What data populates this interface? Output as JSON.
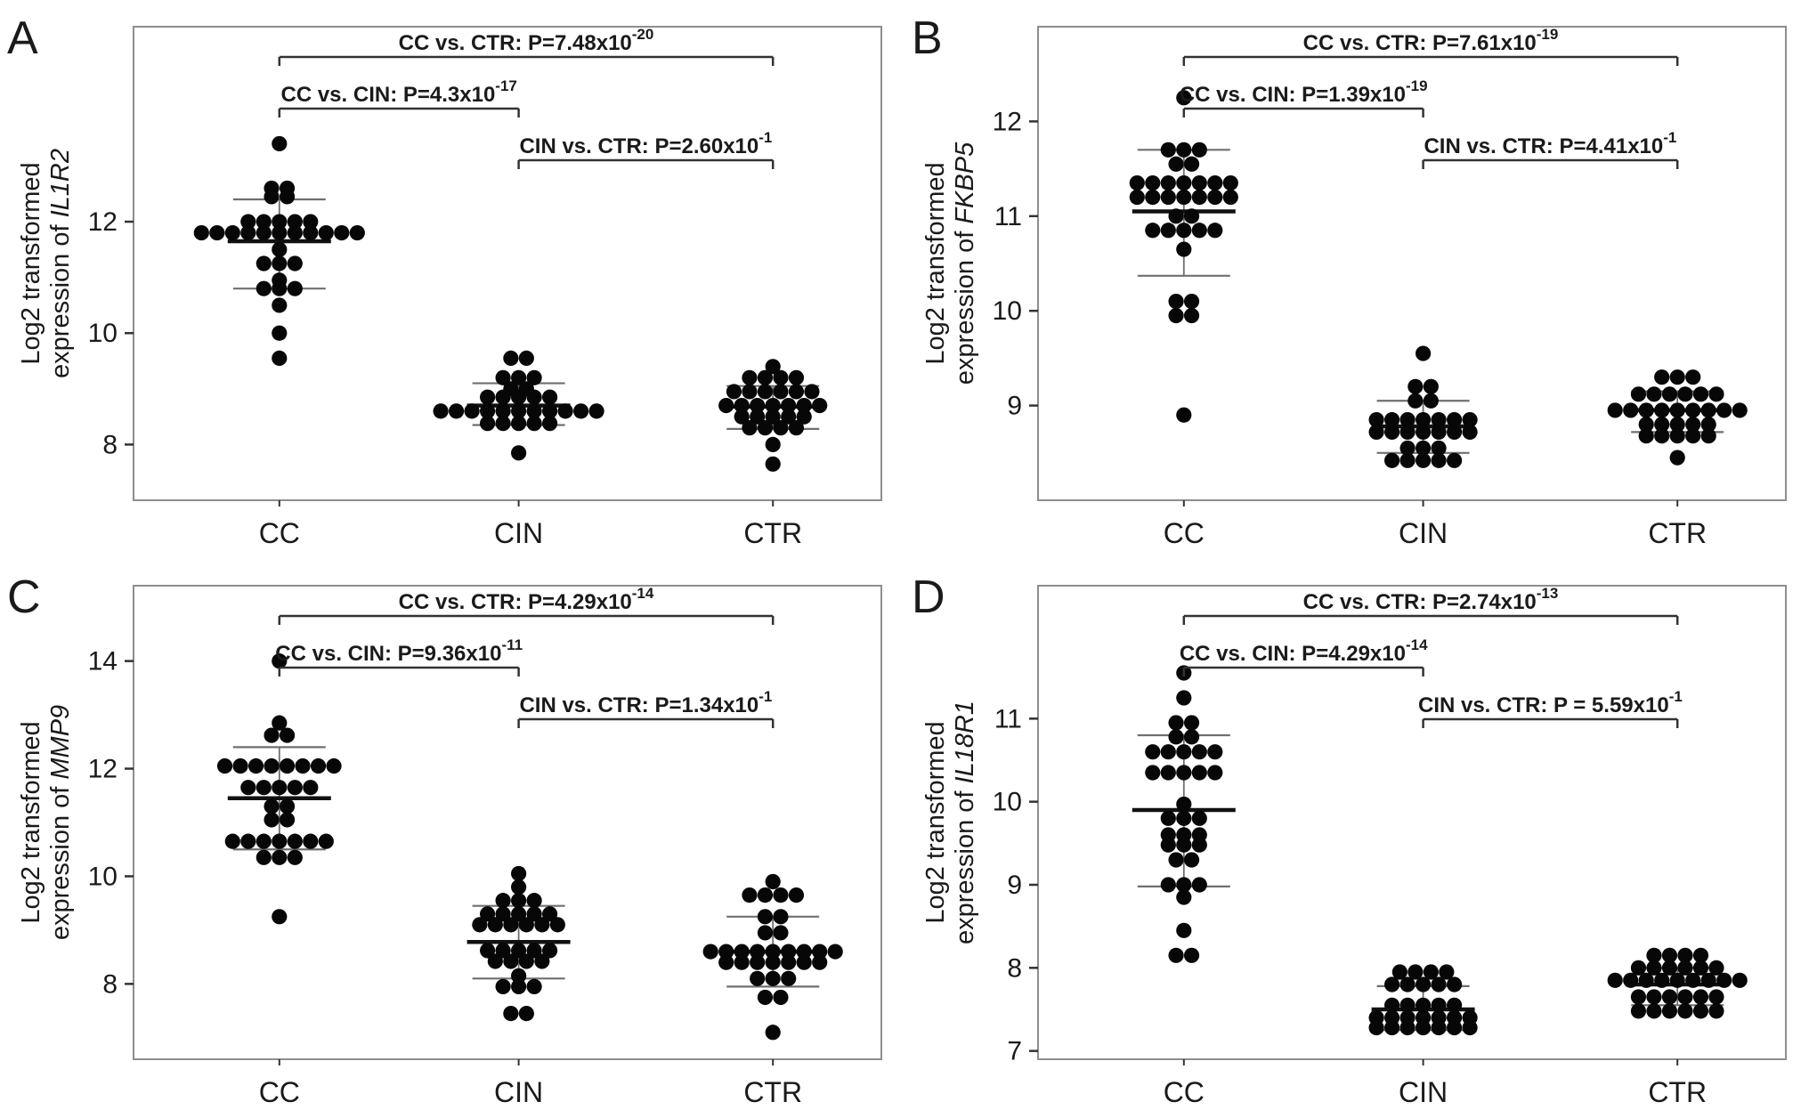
{
  "figure": {
    "background": "#ffffff",
    "dot_color": "#070707",
    "mean_line_color": "#111111",
    "whisker_color": "#6f6f6f",
    "box_border_color": "#8e8e8e",
    "axis_text_color": "#1a1a1a",
    "bracket_color": "#333333"
  },
  "chart_data": [
    {
      "type": "scatter",
      "panel": "A",
      "ylabel_line1": "Log2 transformed",
      "ylabel_line2": "expression of",
      "gene": "IL1R2",
      "yticks": [
        8,
        10,
        12
      ],
      "ylim": [
        7.0,
        15.5
      ],
      "categories": [
        "CC",
        "CIN",
        "CTR"
      ],
      "groups": [
        {
          "label": "CC",
          "mean": 11.65,
          "sd_upper": 12.4,
          "sd_lower": 10.8,
          "rows": [
            [
              13.4,
              1
            ],
            [
              12.6,
              2
            ],
            [
              12.45,
              2
            ],
            [
              12.0,
              5
            ],
            [
              11.8,
              11
            ],
            [
              11.5,
              1
            ],
            [
              11.25,
              3
            ],
            [
              10.95,
              1
            ],
            [
              10.8,
              3
            ],
            [
              10.5,
              1
            ],
            [
              10.0,
              1
            ],
            [
              9.55,
              1
            ]
          ]
        },
        {
          "label": "CIN",
          "mean": 8.7,
          "sd_upper": 9.1,
          "sd_lower": 8.35,
          "rows": [
            [
              9.55,
              2
            ],
            [
              9.2,
              3
            ],
            [
              9.0,
              2
            ],
            [
              8.85,
              5
            ],
            [
              8.6,
              11
            ],
            [
              8.38,
              5
            ],
            [
              7.85,
              1
            ]
          ]
        },
        {
          "label": "CTR",
          "mean": 8.68,
          "sd_upper": 9.05,
          "sd_lower": 8.28,
          "rows": [
            [
              9.4,
              1
            ],
            [
              9.2,
              4
            ],
            [
              8.95,
              6
            ],
            [
              8.7,
              7
            ],
            [
              8.5,
              5
            ],
            [
              8.3,
              4
            ],
            [
              8.0,
              1
            ],
            [
              7.65,
              1
            ]
          ]
        }
      ],
      "annotations": [
        {
          "text": "CC vs. CTR: P=7.48x10",
          "exponent": "-20",
          "from": "CC",
          "to": "CTR",
          "level": 0
        },
        {
          "text": "CC vs. CIN: P=4.3x10",
          "exponent": "-17",
          "from": "CC",
          "to": "CIN",
          "level": 1
        },
        {
          "text": "CIN vs. CTR: P=2.60x10",
          "exponent": "-1",
          "from": "CIN",
          "to": "CTR",
          "level": 2
        }
      ]
    },
    {
      "type": "scatter",
      "panel": "B",
      "ylabel_line1": "Log2 transformed",
      "ylabel_line2": "expression of",
      "gene": "FKBP5",
      "yticks": [
        9,
        10,
        11,
        12
      ],
      "ylim": [
        8.0,
        13.0
      ],
      "categories": [
        "CC",
        "CIN",
        "CTR"
      ],
      "groups": [
        {
          "label": "CC",
          "mean": 11.05,
          "sd_upper": 11.7,
          "sd_lower": 10.37,
          "rows": [
            [
              12.25,
              1
            ],
            [
              11.7,
              3
            ],
            [
              11.55,
              2
            ],
            [
              11.35,
              7
            ],
            [
              11.2,
              7
            ],
            [
              11.0,
              2
            ],
            [
              10.85,
              5
            ],
            [
              10.65,
              1
            ],
            [
              10.1,
              2
            ],
            [
              9.95,
              2
            ],
            [
              8.9,
              1
            ]
          ]
        },
        {
          "label": "CIN",
          "mean": 8.78,
          "sd_upper": 9.05,
          "sd_lower": 8.5,
          "rows": [
            [
              9.55,
              1
            ],
            [
              9.2,
              2
            ],
            [
              9.05,
              2
            ],
            [
              8.85,
              7
            ],
            [
              8.72,
              7
            ],
            [
              8.55,
              3
            ],
            [
              8.42,
              5
            ]
          ]
        },
        {
          "label": "CTR",
          "mean": 8.95,
          "sd_upper": 9.15,
          "sd_lower": 8.72,
          "rows": [
            [
              9.3,
              3
            ],
            [
              9.12,
              6
            ],
            [
              8.95,
              9
            ],
            [
              8.8,
              5
            ],
            [
              8.68,
              5
            ],
            [
              8.45,
              1
            ]
          ]
        }
      ],
      "annotations": [
        {
          "text": "CC vs. CTR: P=7.61x10",
          "exponent": "-19",
          "from": "CC",
          "to": "CTR",
          "level": 0
        },
        {
          "text": "CC vs. CIN: P=1.39x10",
          "exponent": "-19",
          "from": "CC",
          "to": "CIN",
          "level": 1
        },
        {
          "text": "CIN vs. CTR: P=4.41x10",
          "exponent": "-1",
          "from": "CIN",
          "to": "CTR",
          "level": 2
        }
      ]
    },
    {
      "type": "scatter",
      "panel": "C",
      "ylabel_line1": "Log2 transformed",
      "ylabel_line2": "expression of",
      "gene": "MMP9",
      "yticks": [
        8,
        10,
        12,
        14
      ],
      "ylim": [
        6.6,
        15.4
      ],
      "categories": [
        "CC",
        "CIN",
        "CTR"
      ],
      "groups": [
        {
          "label": "CC",
          "mean": 11.45,
          "sd_upper": 12.4,
          "sd_lower": 10.5,
          "rows": [
            [
              14.0,
              1
            ],
            [
              12.85,
              1
            ],
            [
              12.62,
              2
            ],
            [
              12.05,
              8
            ],
            [
              11.65,
              5
            ],
            [
              11.3,
              2
            ],
            [
              11.05,
              2
            ],
            [
              10.65,
              7
            ],
            [
              10.35,
              3
            ],
            [
              9.25,
              1
            ]
          ]
        },
        {
          "label": "CIN",
          "mean": 8.78,
          "sd_upper": 9.45,
          "sd_lower": 8.1,
          "rows": [
            [
              10.05,
              1
            ],
            [
              9.8,
              1
            ],
            [
              9.55,
              3
            ],
            [
              9.3,
              5
            ],
            [
              9.1,
              6
            ],
            [
              8.62,
              5
            ],
            [
              8.42,
              4
            ],
            [
              8.15,
              1
            ],
            [
              7.95,
              3
            ],
            [
              7.45,
              2
            ]
          ]
        },
        {
          "label": "CTR",
          "mean": 8.6,
          "sd_upper": 9.25,
          "sd_lower": 7.95,
          "rows": [
            [
              9.9,
              1
            ],
            [
              9.65,
              4
            ],
            [
              9.25,
              2
            ],
            [
              8.95,
              2
            ],
            [
              8.6,
              9
            ],
            [
              8.4,
              7
            ],
            [
              8.1,
              3
            ],
            [
              7.75,
              2
            ],
            [
              7.1,
              1
            ]
          ]
        }
      ],
      "annotations": [
        {
          "text": "CC vs. CTR: P=4.29x10",
          "exponent": "-14",
          "from": "CC",
          "to": "CTR",
          "level": 0
        },
        {
          "text": "CC vs. CIN: P=9.36x10",
          "exponent": "-11",
          "from": "CC",
          "to": "CIN",
          "level": 1
        },
        {
          "text": "CIN vs. CTR: P=1.34x10",
          "exponent": "-1",
          "from": "CIN",
          "to": "CTR",
          "level": 2
        }
      ]
    },
    {
      "type": "scatter",
      "panel": "D",
      "ylabel_line1": "Log2 transformed",
      "ylabel_line2": "expression of",
      "gene": "IL18R1",
      "yticks": [
        7,
        8,
        9,
        10,
        11
      ],
      "ylim": [
        6.9,
        12.6
      ],
      "categories": [
        "CC",
        "CIN",
        "CTR"
      ],
      "groups": [
        {
          "label": "CC",
          "mean": 9.9,
          "sd_upper": 10.8,
          "sd_lower": 8.98,
          "rows": [
            [
              11.55,
              1
            ],
            [
              11.25,
              1
            ],
            [
              10.95,
              2
            ],
            [
              10.78,
              2
            ],
            [
              10.6,
              5
            ],
            [
              10.35,
              5
            ],
            [
              9.97,
              1
            ],
            [
              9.8,
              3
            ],
            [
              9.6,
              3
            ],
            [
              9.48,
              3
            ],
            [
              9.3,
              2
            ],
            [
              9.0,
              3
            ],
            [
              8.85,
              1
            ],
            [
              8.45,
              1
            ],
            [
              8.15,
              2
            ]
          ]
        },
        {
          "label": "CIN",
          "mean": 7.5,
          "sd_upper": 7.78,
          "sd_lower": 7.25,
          "rows": [
            [
              7.95,
              4
            ],
            [
              7.8,
              5
            ],
            [
              7.55,
              5
            ],
            [
              7.4,
              7
            ],
            [
              7.28,
              7
            ]
          ]
        },
        {
          "label": "CTR",
          "mean": 7.8,
          "sd_upper": 8.0,
          "sd_lower": 7.55,
          "rows": [
            [
              8.15,
              4
            ],
            [
              8.0,
              6
            ],
            [
              7.85,
              9
            ],
            [
              7.65,
              6
            ],
            [
              7.48,
              6
            ]
          ]
        }
      ],
      "annotations": [
        {
          "text": "CC vs. CTR: P=2.74x10",
          "exponent": "-13",
          "from": "CC",
          "to": "CTR",
          "level": 0
        },
        {
          "text": "CC vs. CIN: P=4.29x10",
          "exponent": "-14",
          "from": "CC",
          "to": "CIN",
          "level": 1
        },
        {
          "text": "CIN vs. CTR: P = 5.59x10",
          "exponent": "-1",
          "from": "CIN",
          "to": "CTR",
          "level": 2
        }
      ]
    }
  ]
}
